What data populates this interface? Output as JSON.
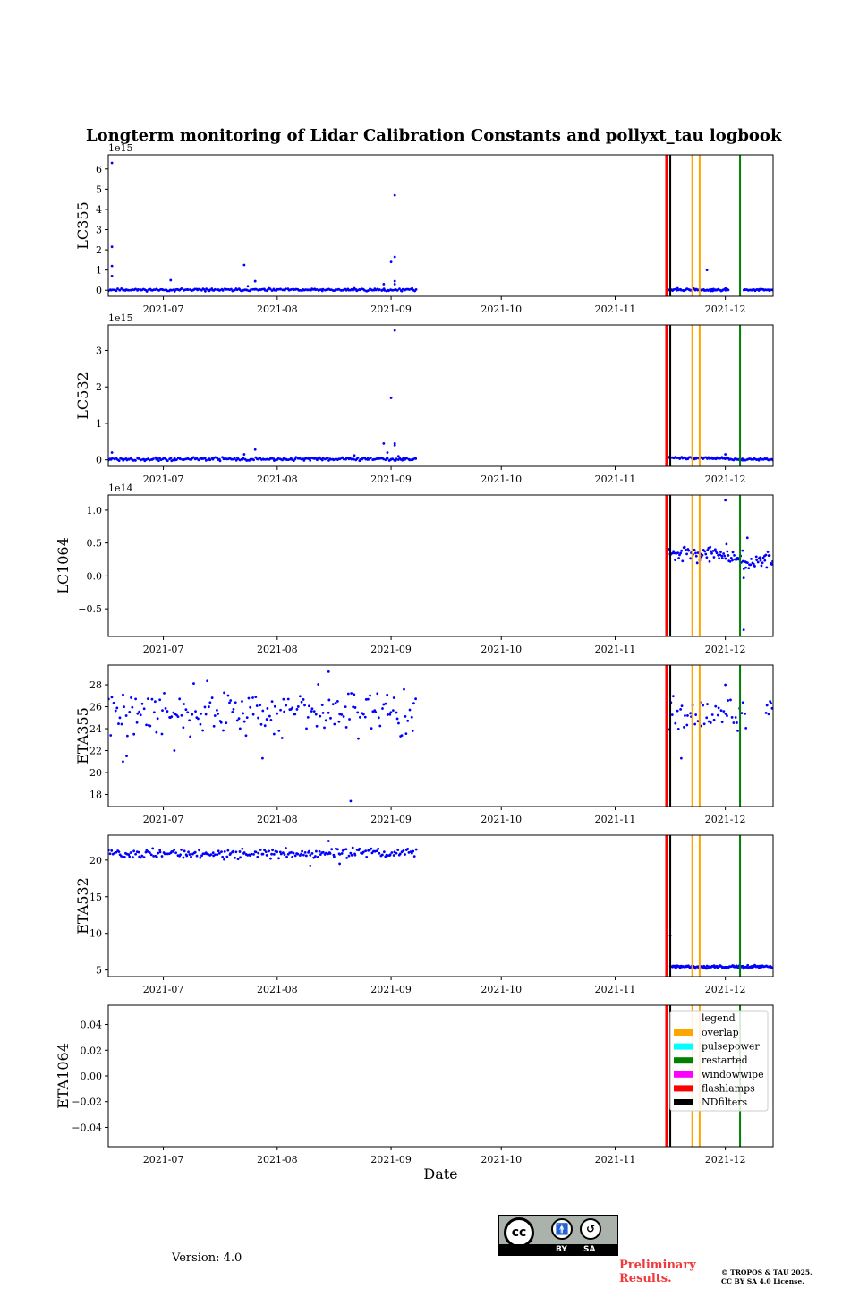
{
  "figure": {
    "title": "Longterm monitoring of Lidar Calibration Constants and pollyxt_tau logbook",
    "xlabel": "Date",
    "version": "Version: 4.0",
    "preliminary": [
      "Preliminary",
      "Results."
    ],
    "copyright": [
      "© TROPOS & TAU 2025.",
      "CC BY SA 4.0 License."
    ],
    "license_badge": {
      "by": "BY",
      "sa": "SA",
      "cc": "cc"
    }
  },
  "chart_data": {
    "type": "scatter",
    "point_color": "#0000ff",
    "x_range": [
      "2021-06-16",
      "2021-12-14"
    ],
    "x_ticks": [
      "2021-07",
      "2021-08",
      "2021-09",
      "2021-10",
      "2021-11",
      "2021-12"
    ],
    "events": [
      {
        "type": "flashlamps",
        "date": "2021-11-15",
        "color": "#ff0000"
      },
      {
        "type": "NDfilters",
        "date": "2021-11-16",
        "color": "#000000"
      },
      {
        "type": "overlap",
        "date": "2021-11-22",
        "color": "#ffa500"
      },
      {
        "type": "overlap",
        "date": "2021-11-24",
        "color": "#ffa500"
      },
      {
        "type": "restarted",
        "date": "2021-12-05",
        "color": "#008000"
      }
    ],
    "legend": {
      "title": "legend",
      "position": "upper right",
      "entries": [
        {
          "label": "overlap",
          "color": "#ffa500"
        },
        {
          "label": "pulsepower",
          "color": "#00ffff"
        },
        {
          "label": "restarted",
          "color": "#008000"
        },
        {
          "label": "windowwipe",
          "color": "#ff00ff"
        },
        {
          "label": "flashlamps",
          "color": "#ff0000"
        },
        {
          "label": "NDfilters",
          "color": "#000000"
        }
      ]
    },
    "panels": [
      {
        "ylabel": "LC355",
        "offset": "1e15",
        "ylim": [
          -0.3,
          6.7
        ],
        "yticks": [
          0,
          1,
          2,
          3,
          4,
          5,
          6
        ],
        "ytick_labels": [
          "0",
          "1",
          "2",
          "3",
          "4",
          "5",
          "6"
        ],
        "segments": [
          {
            "start": "2021-06-16",
            "end": "2021-09-08",
            "n": 240,
            "base": 0.02,
            "noise": 0.04,
            "seed": 11
          },
          {
            "start": "2021-11-15",
            "end": "2021-12-02",
            "n": 60,
            "base": 0.02,
            "noise": 0.04,
            "seed": 12
          },
          {
            "start": "2021-12-06",
            "end": "2021-12-14",
            "n": 30,
            "base": 0.02,
            "noise": 0.03,
            "seed": 13
          }
        ],
        "outliers": [
          [
            "2021-06-17",
            6.3
          ],
          [
            "2021-06-17",
            2.15
          ],
          [
            "2021-06-17",
            1.2
          ],
          [
            "2021-06-17",
            0.7
          ],
          [
            "2021-07-03",
            0.5
          ],
          [
            "2021-07-23",
            1.25
          ],
          [
            "2021-07-24",
            0.2
          ],
          [
            "2021-07-26",
            0.45
          ],
          [
            "2021-08-22",
            0.1
          ],
          [
            "2021-08-30",
            0.3
          ],
          [
            "2021-09-01",
            1.4
          ],
          [
            "2021-09-02",
            1.65
          ],
          [
            "2021-09-02",
            4.7
          ],
          [
            "2021-09-02",
            0.45
          ],
          [
            "2021-09-02",
            0.3
          ],
          [
            "2021-11-26",
            1.0
          ],
          [
            "2021-11-18",
            0.1
          ],
          [
            "2021-12-01",
            0.08
          ]
        ]
      },
      {
        "ylabel": "LC532",
        "offset": "1e15",
        "ylim": [
          -0.18,
          3.7
        ],
        "yticks": [
          0,
          1,
          2,
          3
        ],
        "ytick_labels": [
          "0",
          "1",
          "2",
          "3"
        ],
        "segments": [
          {
            "start": "2021-06-16",
            "end": "2021-09-08",
            "n": 240,
            "base": 0.02,
            "noise": 0.03,
            "seed": 21
          },
          {
            "start": "2021-11-15",
            "end": "2021-12-02",
            "n": 60,
            "base": 0.05,
            "noise": 0.02,
            "seed": 22
          },
          {
            "start": "2021-12-02",
            "end": "2021-12-14",
            "n": 40,
            "base": 0.01,
            "noise": 0.02,
            "seed": 23
          }
        ],
        "outliers": [
          [
            "2021-06-17",
            0.2
          ],
          [
            "2021-07-23",
            0.15
          ],
          [
            "2021-07-26",
            0.28
          ],
          [
            "2021-08-22",
            0.12
          ],
          [
            "2021-08-30",
            0.45
          ],
          [
            "2021-08-31",
            0.2
          ],
          [
            "2021-09-01",
            1.7
          ],
          [
            "2021-09-02",
            3.55
          ],
          [
            "2021-09-02",
            0.45
          ],
          [
            "2021-09-02",
            0.4
          ],
          [
            "2021-09-03",
            0.1
          ],
          [
            "2021-12-01",
            0.15
          ]
        ]
      },
      {
        "ylabel": "LC1064",
        "offset": "1e14",
        "ylim": [
          -0.92,
          1.23
        ],
        "yticks": [
          -0.5,
          0,
          0.5,
          1
        ],
        "ytick_labels": [
          "−0.5",
          "0.0",
          "0.5",
          "1.0"
        ],
        "segments": [
          {
            "start": "2021-11-15",
            "end": "2021-11-25",
            "n": 35,
            "base": 0.33,
            "noise": 0.08,
            "seed": 31
          },
          {
            "start": "2021-11-25",
            "end": "2021-12-04",
            "n": 35,
            "base": 0.35,
            "noise": 0.12,
            "seed": 32
          },
          {
            "start": "2021-12-04",
            "end": "2021-12-14",
            "n": 40,
            "base": 0.24,
            "noise": 0.1,
            "seed": 33
          }
        ],
        "outliers": [
          [
            "2021-12-01",
            1.15
          ],
          [
            "2021-12-06",
            -0.03
          ],
          [
            "2021-12-07",
            0.58
          ],
          [
            "2021-12-06",
            -0.82
          ]
        ]
      },
      {
        "ylabel": "ETA355",
        "offset": "",
        "ylim": [
          16.9,
          29.8
        ],
        "yticks": [
          18,
          20,
          22,
          24,
          26,
          28
        ],
        "ytick_labels": [
          "18",
          "20",
          "22",
          "24",
          "26",
          "28"
        ],
        "segments": [
          {
            "start": "2021-06-16",
            "end": "2021-09-08",
            "n": 200,
            "base": 25.5,
            "noise": 1.5,
            "seed": 41
          },
          {
            "start": "2021-11-15",
            "end": "2021-12-07",
            "n": 50,
            "base": 25.2,
            "noise": 1.0,
            "seed": 42
          },
          {
            "start": "2021-12-12",
            "end": "2021-12-14",
            "n": 6,
            "base": 26.0,
            "noise": 0.5,
            "seed": 43
          }
        ],
        "outliers": [
          [
            "2021-08-21",
            17.4
          ],
          [
            "2021-06-20",
            21.0
          ],
          [
            "2021-06-21",
            21.5
          ],
          [
            "2021-08-15",
            29.2
          ],
          [
            "2021-07-28",
            21.3
          ],
          [
            "2021-11-19",
            21.3
          ],
          [
            "2021-12-01",
            28.0
          ],
          [
            "2021-07-04",
            22.0
          ]
        ]
      },
      {
        "ylabel": "ETA532",
        "offset": "",
        "ylim": [
          4.1,
          23.4
        ],
        "yticks": [
          5,
          10,
          15,
          20
        ],
        "ytick_labels": [
          "5",
          "10",
          "15",
          "20"
        ],
        "segments": [
          {
            "start": "2021-06-16",
            "end": "2021-09-08",
            "n": 220,
            "base": 20.9,
            "noise": 0.45,
            "seed": 51
          },
          {
            "start": "2021-11-16",
            "end": "2021-12-14",
            "n": 120,
            "base": 5.45,
            "noise": 0.15,
            "seed": 52
          }
        ],
        "outliers": [
          [
            "2021-08-10",
            19.2
          ],
          [
            "2021-08-18",
            19.5
          ],
          [
            "2021-08-15",
            22.6
          ],
          [
            "2021-11-15",
            9.6
          ],
          [
            "2021-11-16",
            9.7
          ]
        ]
      },
      {
        "ylabel": "ETA1064",
        "offset": "",
        "ylim": [
          -0.055,
          0.055
        ],
        "yticks": [
          -0.04,
          -0.02,
          0,
          0.02,
          0.04
        ],
        "ytick_labels": [
          "−0.04",
          "−0.02",
          "0.00",
          "0.02",
          "0.04"
        ],
        "segments": [],
        "outliers": [],
        "show_legend": true
      }
    ]
  }
}
